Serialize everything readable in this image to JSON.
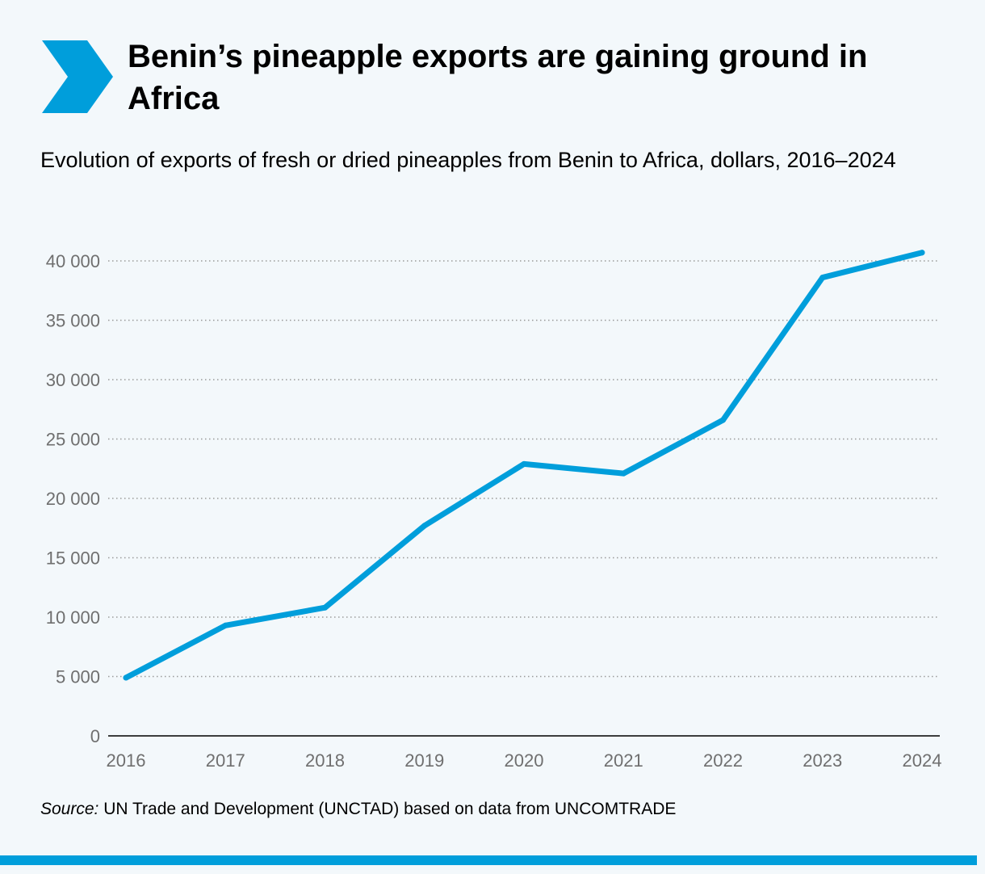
{
  "header": {
    "title": "Benin’s pineapple exports are gaining ground in Africa",
    "subtitle": "Evolution of exports of fresh or dried pineapples from Benin to Africa, dollars, 2016–2024",
    "icon": "chevron-right-icon",
    "accent_color": "#009edb"
  },
  "source": {
    "label": "Source:",
    "text": " UN Trade and Development (UNCTAD) based on data from UNCOMTRADE"
  },
  "chart_data": {
    "type": "line",
    "title": "Benin’s pineapple exports are gaining ground in Africa",
    "subtitle": "Evolution of exports of fresh or dried pineapples from Benin to Africa, dollars, 2016–2024",
    "xlabel": "",
    "ylabel": "",
    "categories": [
      "2016",
      "2017",
      "2018",
      "2019",
      "2020",
      "2021",
      "2022",
      "2023",
      "2024"
    ],
    "series": [
      {
        "color": "#009edb",
        "values": [
          4900,
          9300,
          10800,
          17700,
          22900,
          22100,
          26600,
          38600,
          40700
        ]
      }
    ],
    "ylim": [
      0,
      40000
    ],
    "yticks": [
      0,
      5000,
      10000,
      15000,
      20000,
      25000,
      30000,
      35000,
      40000
    ],
    "ytick_labels": [
      "0",
      "5 000",
      "10 000",
      "15 000",
      "20 000",
      "25 000",
      "30 000",
      "35 000",
      "40 000"
    ],
    "grid": "horizontal dotted",
    "legend": "none"
  }
}
